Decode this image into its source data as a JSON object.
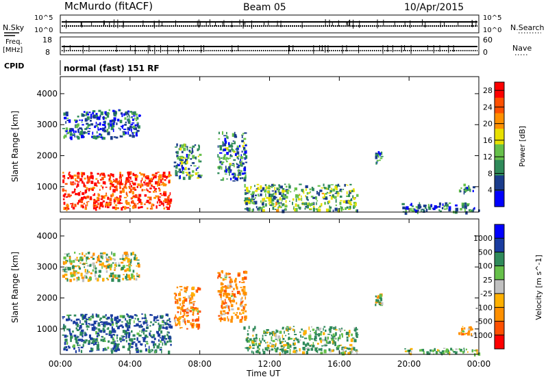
{
  "header": {
    "station": "McMurdo (fitACF)",
    "beam": "Beam 05",
    "date": "10/Apr/2015"
  },
  "top_panels": {
    "nsky_label": "N.Sky",
    "nsky_ticks": [
      "10^5",
      "10^0"
    ],
    "nsearch_label": "N.Search",
    "nsearch_ticks": [
      "10^5",
      "10^0"
    ],
    "freq_label": "Freq.",
    "freq_unit": "[MHz]",
    "freq_ticks": [
      "18",
      "8"
    ],
    "nave_label": "Nave",
    "nave_ticks": [
      "60",
      "0"
    ],
    "cpid_label": "CPID",
    "cpid_value": "normal (fast) 151 RF"
  },
  "chart_data": [
    {
      "type": "heatmap",
      "title": "",
      "xlabel": "Time UT",
      "ylabel": "Slant Range [km]",
      "xticks": [
        "00:00",
        "04:00",
        "08:00",
        "12:00",
        "16:00",
        "20:00",
        "00:00"
      ],
      "xlim": [
        0,
        24
      ],
      "ylim": [
        180,
        4550
      ],
      "yticks": [
        "1000",
        "2000",
        "3000",
        "4000"
      ],
      "colorbar": {
        "label": "Power [dB]",
        "ticks": [
          "4",
          "8",
          "12",
          "16",
          "20",
          "24",
          "28"
        ],
        "range": [
          0,
          30
        ],
        "colors": [
          "#0000ff",
          "#1a3c8c",
          "#2f8a5a",
          "#66c04a",
          "#e8e000",
          "#ff9000",
          "#ff5000",
          "#ff0000"
        ]
      },
      "regions": [
        {
          "t0": 0.1,
          "t1": 6.3,
          "r0": 300,
          "r1": 1500,
          "level": 26,
          "desc": "strong backscatter"
        },
        {
          "t0": 0.1,
          "t1": 4.5,
          "r0": 2600,
          "r1": 3500,
          "level": 6,
          "desc": "scattered far echoes"
        },
        {
          "t0": 6.5,
          "t1": 8.0,
          "r0": 1300,
          "r1": 2400,
          "level": 10,
          "desc": "patches"
        },
        {
          "t0": 9.0,
          "t1": 10.6,
          "r0": 1200,
          "r1": 2800,
          "level": 9,
          "desc": "patches"
        },
        {
          "t0": 10.5,
          "t1": 17.0,
          "r0": 250,
          "r1": 1100,
          "level": 12,
          "desc": "descending band"
        },
        {
          "t0": 18.0,
          "t1": 18.4,
          "r0": 1800,
          "r1": 2150,
          "level": 8,
          "desc": "isolated patch"
        },
        {
          "t0": 19.5,
          "t1": 24.0,
          "r0": 200,
          "r1": 500,
          "level": 8,
          "desc": "near-range band"
        },
        {
          "t0": 22.8,
          "t1": 23.7,
          "r0": 850,
          "r1": 1100,
          "level": 9,
          "desc": "isolated patch"
        }
      ]
    },
    {
      "type": "heatmap",
      "title": "",
      "xlabel": "Time UT",
      "ylabel": "Slant Range [km]",
      "xticks": [
        "00:00",
        "04:00",
        "08:00",
        "12:00",
        "16:00",
        "20:00",
        "00:00"
      ],
      "xlim": [
        0,
        24
      ],
      "ylim": [
        180,
        4550
      ],
      "yticks": [
        "1000",
        "2000",
        "3000",
        "4000"
      ],
      "colorbar": {
        "label": "Velocity [m s^-1]",
        "ticks": [
          "1000",
          "500",
          "100",
          "25",
          "-25",
          "-100",
          "-500",
          "-1000"
        ],
        "colors": [
          "#0000ff",
          "#1a3ca0",
          "#2f8a5a",
          "#66c04a",
          "#c0c0c0",
          "#ffb000",
          "#ff9000",
          "#ff5000",
          "#ff0000"
        ]
      },
      "regions": [
        {
          "t0": 0.1,
          "t1": 6.3,
          "r0": 300,
          "r1": 1500,
          "level": 500,
          "desc": "blue/green band"
        },
        {
          "t0": 0.1,
          "t1": 4.5,
          "r0": 2600,
          "r1": 3500,
          "level": 25,
          "desc": "scattered far echoes"
        },
        {
          "t0": 6.5,
          "t1": 8.0,
          "r0": 1000,
          "r1": 2400,
          "level": -300,
          "desc": "orange patches"
        },
        {
          "t0": 9.0,
          "t1": 10.6,
          "r0": 1300,
          "r1": 2900,
          "level": -300,
          "desc": "orange patches"
        },
        {
          "t0": 10.5,
          "t1": 17.0,
          "r0": 250,
          "r1": 1100,
          "level": 200,
          "desc": "descending band"
        },
        {
          "t0": 18.0,
          "t1": 18.4,
          "r0": 1800,
          "r1": 2150,
          "level": 100,
          "desc": "isolated patch"
        },
        {
          "t0": 19.5,
          "t1": 24.0,
          "r0": 200,
          "r1": 400,
          "level": 100,
          "desc": "green band"
        },
        {
          "t0": 22.8,
          "t1": 23.7,
          "r0": 850,
          "r1": 1100,
          "level": -300,
          "desc": "orange patch"
        }
      ]
    }
  ]
}
